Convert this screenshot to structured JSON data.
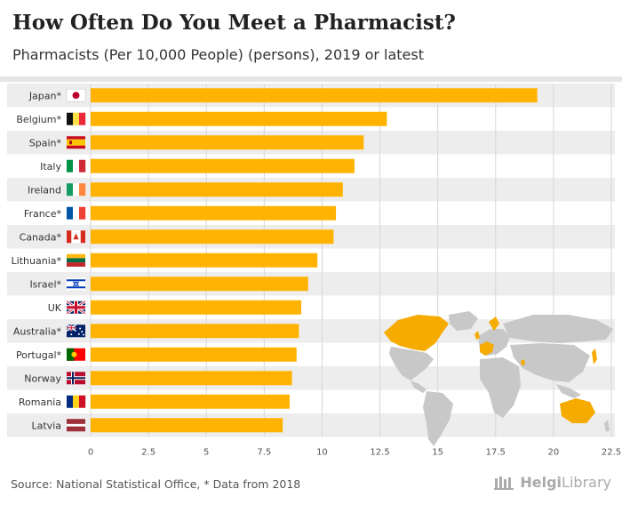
{
  "header": {
    "title": "How Often Do You Meet a Pharmacist?",
    "subtitle": "Pharmacists (Per 10,000 People) (persons), 2019 or latest"
  },
  "footer": {
    "source": "Source: National Statistical Office, * Data from 2018",
    "logo_text_bold": "Helgi",
    "logo_text": "Library"
  },
  "colors": {
    "bar": "#ffb300",
    "map_highlight": "#f5ab00",
    "map_land": "#c8c8c8",
    "band": "#ededed"
  },
  "chart_data": {
    "type": "bar",
    "orientation": "horizontal",
    "title": "How Often Do You Meet a Pharmacist?",
    "subtitle": "Pharmacists (Per 10,000 People) (persons), 2019 or latest",
    "categories": [
      "Japan*",
      "Belgium*",
      "Spain*",
      "Italy",
      "Ireland",
      "France*",
      "Canada*",
      "Lithuania*",
      "Israel*",
      "UK",
      "Australia*",
      "Portugal*",
      "Norway",
      "Romania",
      "Latvia"
    ],
    "flags": [
      "japan",
      "belgium",
      "spain",
      "italy",
      "ireland",
      "france",
      "canada",
      "lithuania",
      "israel",
      "uk",
      "australia",
      "portugal",
      "norway",
      "romania",
      "latvia"
    ],
    "values": [
      19.3,
      12.8,
      11.8,
      11.4,
      10.9,
      10.6,
      10.5,
      9.8,
      9.4,
      9.1,
      9.0,
      8.9,
      8.7,
      8.6,
      8.3
    ],
    "xlim": [
      0,
      22.5
    ],
    "xticks": [
      "0",
      "2.5",
      "5",
      "7.5",
      "10",
      "12.5",
      "15",
      "17.5",
      "20",
      "22.5"
    ],
    "grid": true
  }
}
